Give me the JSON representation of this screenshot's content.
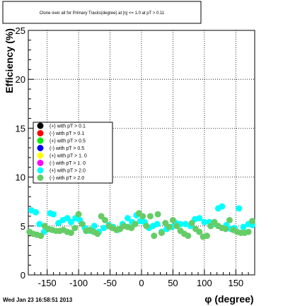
{
  "chart_data": {
    "type": "scatter",
    "title": "Clone  over all for Primary Tracks(degree) at |η| <= 1.0 at pT > 0.11",
    "xlabel": "φ (degree)",
    "ylabel": "Efficiency (%)",
    "xlim": [
      -180,
      180
    ],
    "ylim": [
      0,
      25
    ],
    "xticks": [
      -150,
      -100,
      -50,
      0,
      50,
      100,
      150
    ],
    "yticks": [
      0,
      5,
      10,
      15,
      20,
      25
    ],
    "grid": true,
    "legend_position": "left-middle",
    "legend": [
      {
        "label": "(+) with pT > 0.1",
        "color": "#000000"
      },
      {
        "label": "(-) with pT > 0.1",
        "color": "#ff0000"
      },
      {
        "label": "(+) with pT > 0.5",
        "color": "#00ee00"
      },
      {
        "label": "(-) with pT > 0.5",
        "color": "#0000ff"
      },
      {
        "label": "(+) with pT > 1. 0",
        "color": "#ffff00"
      },
      {
        "label": "(-) with pT > 1. 0",
        "color": "#ff00ff"
      },
      {
        "label": "(+) with pT > 2.0",
        "color": "#00ffff"
      },
      {
        "label": "(-) with pT > 2.0",
        "color": "#66cc66"
      }
    ],
    "series": [
      {
        "color": "#00ffff",
        "points": [
          [
            -175,
            6.6
          ],
          [
            -168,
            6.4
          ],
          [
            -162,
            5.2
          ],
          [
            -155,
            4.4
          ],
          [
            -145,
            6.3
          ],
          [
            -140,
            6.2
          ],
          [
            -132,
            5.3
          ],
          [
            -125,
            5.6
          ],
          [
            -118,
            5.8
          ],
          [
            -112,
            5.4
          ],
          [
            -105,
            5.8
          ],
          [
            -98,
            5.6
          ],
          [
            -90,
            4.8
          ],
          [
            -82,
            4.5
          ],
          [
            -75,
            5.0
          ],
          [
            -68,
            4.4
          ],
          [
            -60,
            4.8
          ],
          [
            -52,
            5.1
          ],
          [
            -45,
            4.9
          ],
          [
            -38,
            4.6
          ],
          [
            -30,
            5.2
          ],
          [
            -22,
            5.8
          ],
          [
            -15,
            5.4
          ],
          [
            -8,
            6.1
          ],
          [
            -2,
            5.5
          ],
          [
            5,
            5.4
          ],
          [
            12,
            4.8
          ],
          [
            18,
            5.0
          ],
          [
            25,
            5.2
          ],
          [
            32,
            4.4
          ],
          [
            40,
            4.7
          ],
          [
            48,
            4.9
          ],
          [
            55,
            5.3
          ],
          [
            62,
            5.2
          ],
          [
            70,
            5.2
          ],
          [
            78,
            5.0
          ],
          [
            85,
            5.7
          ],
          [
            92,
            5.8
          ],
          [
            100,
            5.4
          ],
          [
            108,
            5.4
          ],
          [
            115,
            5.2
          ],
          [
            122,
            6.8
          ],
          [
            128,
            7.0
          ],
          [
            135,
            5.1
          ],
          [
            142,
            4.7
          ],
          [
            148,
            4.8
          ],
          [
            155,
            6.8
          ],
          [
            162,
            4.9
          ],
          [
            170,
            5.2
          ],
          [
            176,
            5.1
          ]
        ]
      },
      {
        "color": "#66cc66",
        "points": [
          [
            -178,
            4.4
          ],
          [
            -172,
            4.2
          ],
          [
            -166,
            4.1
          ],
          [
            -160,
            4.0
          ],
          [
            -154,
            5.0
          ],
          [
            -148,
            4.7
          ],
          [
            -142,
            4.6
          ],
          [
            -136,
            4.5
          ],
          [
            -130,
            4.5
          ],
          [
            -124,
            4.6
          ],
          [
            -118,
            4.4
          ],
          [
            -112,
            4.3
          ],
          [
            -106,
            4.8
          ],
          [
            -100,
            6.2
          ],
          [
            -94,
            5.2
          ],
          [
            -88,
            4.5
          ],
          [
            -82,
            4.6
          ],
          [
            -76,
            4.4
          ],
          [
            -70,
            4.2
          ],
          [
            -64,
            6.0
          ],
          [
            -58,
            5.6
          ],
          [
            -52,
            5.0
          ],
          [
            -46,
            4.8
          ],
          [
            -40,
            4.6
          ],
          [
            -34,
            4.7
          ],
          [
            -28,
            5.0
          ],
          [
            -22,
            4.9
          ],
          [
            -16,
            4.8
          ],
          [
            -10,
            5.2
          ],
          [
            -4,
            6.3
          ],
          [
            2,
            6.0
          ],
          [
            8,
            5.0
          ],
          [
            14,
            6.0
          ],
          [
            20,
            4.0
          ],
          [
            26,
            6.2
          ],
          [
            32,
            4.3
          ],
          [
            38,
            5.3
          ],
          [
            44,
            4.9
          ],
          [
            50,
            5.6
          ],
          [
            56,
            5.0
          ],
          [
            62,
            4.5
          ],
          [
            68,
            4.2
          ],
          [
            74,
            4.0
          ],
          [
            80,
            5.3
          ],
          [
            86,
            4.7
          ],
          [
            92,
            4.4
          ],
          [
            98,
            3.9
          ],
          [
            104,
            4.0
          ],
          [
            110,
            5.0
          ],
          [
            116,
            5.4
          ],
          [
            122,
            5.0
          ],
          [
            128,
            4.8
          ],
          [
            134,
            4.7
          ],
          [
            140,
            5.6
          ],
          [
            146,
            4.6
          ],
          [
            152,
            4.4
          ],
          [
            158,
            4.3
          ],
          [
            164,
            4.3
          ],
          [
            170,
            4.4
          ],
          [
            176,
            5.5
          ]
        ]
      }
    ]
  },
  "footer": {
    "timestamp": "Wed Jan 23 16:58:51 2013"
  }
}
